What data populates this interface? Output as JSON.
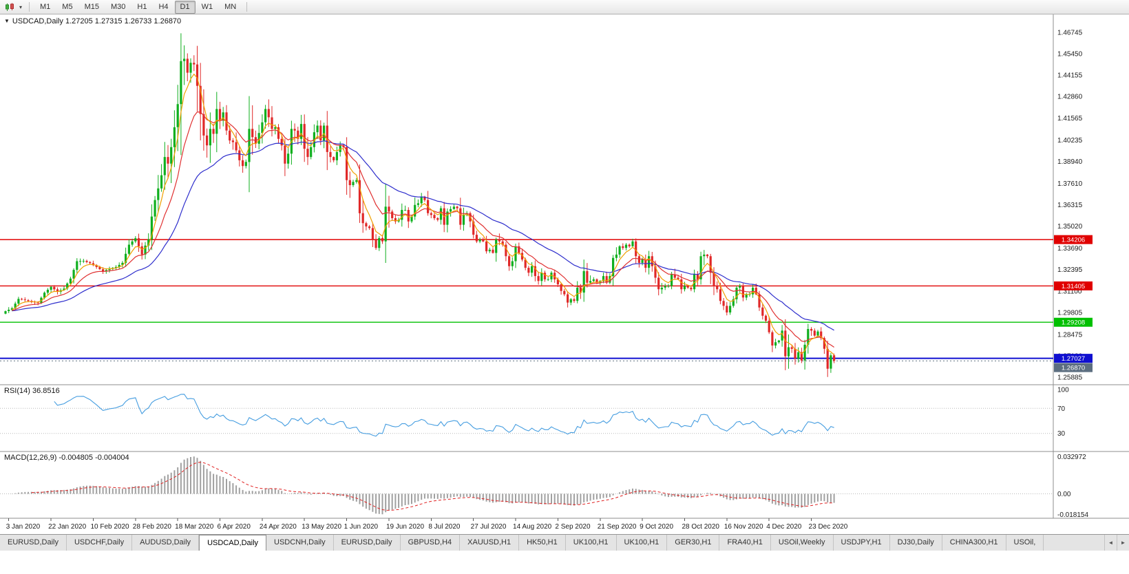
{
  "toolbar": {
    "dropdown_glyph": "▾",
    "timeframes": [
      "M1",
      "M5",
      "M15",
      "M30",
      "H1",
      "H4",
      "D1",
      "W1",
      "MN"
    ],
    "active_timeframe": "D1"
  },
  "chart_header": {
    "menu_glyph": "▼",
    "title": "USDCAD,Daily",
    "ohlc": "1.27205 1.27315 1.26733 1.26870"
  },
  "rsi_panel": {
    "label": "RSI(14) 36.8516",
    "axis_labels": [
      "100",
      "70",
      "30"
    ],
    "level_lines": [
      70,
      30
    ],
    "line_color": "#459de0"
  },
  "macd_panel": {
    "label": "MACD(12,26,9) -0.004805 -0.004004",
    "axis_labels": [
      "0.032972",
      "0.00",
      "-0.018154"
    ],
    "histogram_color": "#a0a0a0",
    "signal_color": "#e01f1f"
  },
  "tabs": {
    "items": [
      "EURUSD,Daily",
      "USDCHF,Daily",
      "AUDUSD,Daily",
      "USDCAD,Daily",
      "USDCNH,Daily",
      "EURUSD,Daily",
      "GBPUSD,H4",
      "XAUUSD,H1",
      "HK50,H1",
      "UK100,H1",
      "UK100,H1",
      "GER30,H1",
      "FRA40,H1",
      "USOil,Weekly",
      "USDJPY,H1",
      "DJ30,Daily",
      "CHINA300,H1",
      "USOil,"
    ],
    "active_index": 3,
    "scroll_left_glyph": "◄",
    "scroll_right_glyph": "►"
  },
  "chart_data": {
    "type": "candlestick",
    "symbol": "USDCAD",
    "timeframe": "Daily",
    "up_color": "#0faf1e",
    "down_color": "#e02828",
    "y_axis_labels": [
      "1.46745",
      "1.45450",
      "1.44155",
      "1.42860",
      "1.41565",
      "1.40235",
      "1.38940",
      "1.37610",
      "1.36315",
      "1.35020",
      "1.33690",
      "1.32395",
      "1.31100",
      "1.29805",
      "1.28475",
      "1.27180",
      "1.25885"
    ],
    "price_scale": {
      "top_price": 1.4782,
      "bottom_price": 1.2543
    },
    "x_axis_dates": [
      "3 Jan 2020",
      "22 Jan 2020",
      "10 Feb 2020",
      "28 Feb 2020",
      "18 Mar 2020",
      "6 Apr 2020",
      "24 Apr 2020",
      "13 May 2020",
      "1 Jun 2020",
      "19 Jun 2020",
      "8 Jul 2020",
      "27 Jul 2020",
      "14 Aug 2020",
      "2 Sep 2020",
      "21 Sep 2020",
      "9 Oct 2020",
      "28 Oct 2020",
      "16 Nov 2020",
      "4 Dec 2020",
      "23 Dec 2020"
    ],
    "bars_total": 256,
    "first_label_bar": 1,
    "label_every": 13,
    "hlines": [
      {
        "price": 1.34206,
        "label": "1.34206",
        "color": "#e00000",
        "width": 1.4
      },
      {
        "price": 1.31405,
        "label": "1.31405",
        "color": "#e00000",
        "width": 1.4
      },
      {
        "price": 1.29208,
        "label": "1.29208",
        "color": "#00c000",
        "width": 1.4
      },
      {
        "price": 1.27027,
        "label": "1.27027",
        "color": "#0f0fd0",
        "width": 2
      }
    ],
    "bid_marker": {
      "price": 1.2687,
      "label": "1.26870",
      "color": "#5c6e80"
    },
    "moving_averages": [
      {
        "period": 34,
        "color": "#2d2dcc"
      },
      {
        "period": 13,
        "color": "#e03030"
      },
      {
        "period": 5,
        "color": "#f0a000"
      }
    ],
    "rsi": {
      "period": 14,
      "last_value": 36.8516
    },
    "macd": {
      "fast": 12,
      "slow": 26,
      "signal": 9,
      "scale_max": 0.032972,
      "scale_min": -0.018154,
      "last_macd": -0.004805,
      "last_signal": -0.004004
    },
    "high_overrides": {
      "54": 1.4668,
      "55": 1.4595,
      "255": 1.27315
    },
    "low_overrides": {
      "253": 1.259,
      "254": 1.2615,
      "255": 1.26733
    },
    "close_keypoints": [
      [
        0,
        1.2988
      ],
      [
        2,
        1.3005
      ],
      [
        4,
        1.3062
      ],
      [
        6,
        1.3055
      ],
      [
        8,
        1.3045
      ],
      [
        10,
        1.3038
      ],
      [
        12,
        1.31
      ],
      [
        14,
        1.3135
      ],
      [
        16,
        1.3105
      ],
      [
        18,
        1.3125
      ],
      [
        20,
        1.3185
      ],
      [
        22,
        1.329
      ],
      [
        24,
        1.3292
      ],
      [
        26,
        1.3278
      ],
      [
        28,
        1.3255
      ],
      [
        30,
        1.3228
      ],
      [
        32,
        1.3245
      ],
      [
        34,
        1.3255
      ],
      [
        36,
        1.328
      ],
      [
        38,
        1.339
      ],
      [
        40,
        1.3429
      ],
      [
        41,
        1.338
      ],
      [
        42,
        1.333
      ],
      [
        43,
        1.3385
      ],
      [
        44,
        1.3422
      ],
      [
        45,
        1.356
      ],
      [
        46,
        1.366
      ],
      [
        47,
        1.373
      ],
      [
        48,
        1.381
      ],
      [
        49,
        1.392
      ],
      [
        50,
        1.388
      ],
      [
        51,
        1.398
      ],
      [
        52,
        1.41
      ],
      [
        53,
        1.424
      ],
      [
        54,
        1.45
      ],
      [
        55,
        1.4514
      ],
      [
        56,
        1.443
      ],
      [
        57,
        1.449
      ],
      [
        58,
        1.448
      ],
      [
        59,
        1.435
      ],
      [
        60,
        1.418
      ],
      [
        61,
        1.405
      ],
      [
        62,
        1.399
      ],
      [
        63,
        1.409
      ],
      [
        64,
        1.406
      ],
      [
        65,
        1.421
      ],
      [
        66,
        1.414
      ],
      [
        67,
        1.419
      ],
      [
        68,
        1.408
      ],
      [
        69,
        1.402
      ],
      [
        70,
        1.401
      ],
      [
        71,
        1.396
      ],
      [
        72,
        1.39
      ],
      [
        73,
        1.3865
      ],
      [
        74,
        1.389
      ],
      [
        75,
        1.409
      ],
      [
        76,
        1.404
      ],
      [
        77,
        1.4
      ],
      [
        78,
        1.4065
      ],
      [
        79,
        1.413
      ],
      [
        80,
        1.421
      ],
      [
        81,
        1.416
      ],
      [
        82,
        1.409
      ],
      [
        83,
        1.41
      ],
      [
        84,
        1.403
      ],
      [
        85,
        1.399
      ],
      [
        86,
        1.388
      ],
      [
        87,
        1.394
      ],
      [
        88,
        1.409
      ],
      [
        89,
        1.408
      ],
      [
        90,
        1.403
      ],
      [
        91,
        1.412
      ],
      [
        92,
        1.397
      ],
      [
        93,
        1.392
      ],
      [
        94,
        1.398
      ],
      [
        95,
        1.407
      ],
      [
        96,
        1.411
      ],
      [
        97,
        1.402
      ],
      [
        98,
        1.411
      ],
      [
        99,
        1.395
      ],
      [
        100,
        1.392
      ],
      [
        101,
        1.39
      ],
      [
        102,
        1.395
      ],
      [
        103,
        1.399
      ],
      [
        104,
        1.398
      ],
      [
        105,
        1.378
      ],
      [
        106,
        1.375
      ],
      [
        107,
        1.377
      ],
      [
        108,
        1.378
      ],
      [
        109,
        1.358
      ],
      [
        110,
        1.352
      ],
      [
        111,
        1.35
      ],
      [
        112,
        1.349
      ],
      [
        113,
        1.342
      ],
      [
        114,
        1.337
      ],
      [
        115,
        1.343
      ],
      [
        116,
        1.341
      ],
      [
        117,
        1.362
      ],
      [
        118,
        1.359
      ],
      [
        119,
        1.355
      ],
      [
        120,
        1.353
      ],
      [
        121,
        1.354
      ],
      [
        122,
        1.36
      ],
      [
        123,
        1.36
      ],
      [
        124,
        1.353
      ],
      [
        125,
        1.356
      ],
      [
        126,
        1.363
      ],
      [
        127,
        1.364
      ],
      [
        128,
        1.368
      ],
      [
        129,
        1.366
      ],
      [
        130,
        1.358
      ],
      [
        131,
        1.357
      ],
      [
        132,
        1.355
      ],
      [
        133,
        1.354
      ],
      [
        134,
        1.361
      ],
      [
        135,
        1.351
      ],
      [
        136,
        1.359
      ],
      [
        138,
        1.362
      ],
      [
        139,
        1.361
      ],
      [
        140,
        1.351
      ],
      [
        141,
        1.357
      ],
      [
        142,
        1.358
      ],
      [
        143,
        1.353
      ],
      [
        144,
        1.345
      ],
      [
        145,
        1.341
      ],
      [
        146,
        1.342
      ],
      [
        147,
        1.341
      ],
      [
        148,
        1.335
      ],
      [
        149,
        1.336
      ],
      [
        150,
        1.334
      ],
      [
        151,
        1.342
      ],
      [
        152,
        1.341
      ],
      [
        153,
        1.339
      ],
      [
        154,
        1.332
      ],
      [
        155,
        1.326
      ],
      [
        156,
        1.329
      ],
      [
        157,
        1.338
      ],
      [
        158,
        1.334
      ],
      [
        159,
        1.33
      ],
      [
        160,
        1.325
      ],
      [
        161,
        1.322
      ],
      [
        162,
        1.326
      ],
      [
        163,
        1.32
      ],
      [
        164,
        1.317
      ],
      [
        165,
        1.322
      ],
      [
        166,
        1.318
      ],
      [
        167,
        1.318
      ],
      [
        168,
        1.322
      ],
      [
        169,
        1.318
      ],
      [
        170,
        1.315
      ],
      [
        171,
        1.311
      ],
      [
        172,
        1.309
      ],
      [
        173,
        1.304
      ],
      [
        174,
        1.306
      ],
      [
        175,
        1.305
      ],
      [
        176,
        1.313
      ],
      [
        177,
        1.31
      ],
      [
        178,
        1.323
      ],
      [
        179,
        1.316
      ],
      [
        180,
        1.317
      ],
      [
        181,
        1.318
      ],
      [
        182,
        1.316
      ],
      [
        183,
        1.317
      ],
      [
        184,
        1.32
      ],
      [
        185,
        1.316
      ],
      [
        186,
        1.32
      ],
      [
        187,
        1.331
      ],
      [
        188,
        1.333
      ],
      [
        189,
        1.338
      ],
      [
        190,
        1.337
      ],
      [
        191,
        1.339
      ],
      [
        192,
        1.338
      ],
      [
        193,
        1.341
      ],
      [
        194,
        1.332
      ],
      [
        195,
        1.328
      ],
      [
        196,
        1.33
      ],
      [
        197,
        1.325
      ],
      [
        198,
        1.332
      ],
      [
        199,
        1.326
      ],
      [
        200,
        1.319
      ],
      [
        201,
        1.312
      ],
      [
        202,
        1.313
      ],
      [
        203,
        1.314
      ],
      [
        204,
        1.314
      ],
      [
        205,
        1.321
      ],
      [
        206,
        1.319
      ],
      [
        207,
        1.318
      ],
      [
        208,
        1.312
      ],
      [
        209,
        1.314
      ],
      [
        210,
        1.313
      ],
      [
        211,
        1.312
      ],
      [
        212,
        1.321
      ],
      [
        213,
        1.318
      ],
      [
        214,
        1.332
      ],
      [
        215,
        1.333
      ],
      [
        216,
        1.332
      ],
      [
        217,
        1.322
      ],
      [
        218,
        1.314
      ],
      [
        219,
        1.312
      ],
      [
        220,
        1.305
      ],
      [
        221,
        1.302
      ],
      [
        222,
        1.298
      ],
      [
        223,
        1.302
      ],
      [
        224,
        1.306
      ],
      [
        225,
        1.313
      ],
      [
        226,
        1.314
      ],
      [
        227,
        1.307
      ],
      [
        228,
        1.309
      ],
      [
        229,
        1.309
      ],
      [
        230,
        1.313
      ],
      [
        231,
        1.309
      ],
      [
        232,
        1.301
      ],
      [
        233,
        1.296
      ],
      [
        234,
        1.293
      ],
      [
        235,
        1.286
      ],
      [
        236,
        1.278
      ],
      [
        237,
        1.28
      ],
      [
        238,
        1.281
      ],
      [
        239,
        1.287
      ],
      [
        240,
        1.2715
      ],
      [
        241,
        1.277
      ],
      [
        242,
        1.276
      ],
      [
        243,
        1.27
      ],
      [
        244,
        1.274
      ],
      [
        245,
        1.269
      ],
      [
        246,
        1.2785
      ],
      [
        247,
        1.288
      ],
      [
        248,
        1.287
      ],
      [
        249,
        1.284
      ],
      [
        250,
        1.2865
      ],
      [
        251,
        1.2825
      ],
      [
        252,
        1.276
      ],
      [
        253,
        1.264
      ],
      [
        254,
        1.27205
      ],
      [
        255,
        1.2687
      ]
    ]
  }
}
